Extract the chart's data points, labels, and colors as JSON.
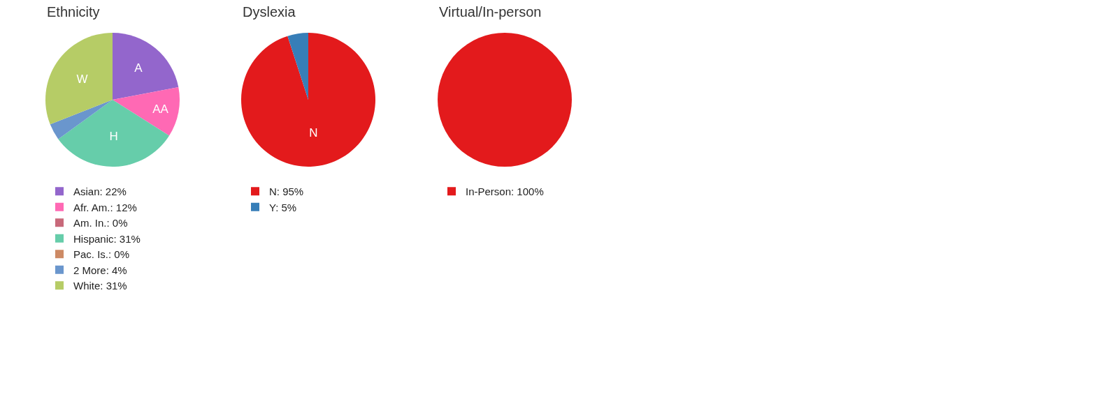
{
  "chart_data": [
    {
      "type": "pie",
      "title": "Ethnicity",
      "categories": [
        "Asian: 22%",
        "Afr. Am.: 12%",
        "Am. In.: 0%",
        "Hispanic: 31%",
        "Pac. Is.: 0%",
        "2 More: 4%",
        "White: 31%"
      ],
      "values": [
        22,
        12,
        0,
        31,
        0,
        4,
        31
      ],
      "colors": [
        "#9366cc",
        "#ff69b4",
        "#c8697a",
        "#66cdaa",
        "#cd8a65",
        "#6a96cd",
        "#b6cc66"
      ],
      "value_labels": [
        "A",
        "AA",
        null,
        "H",
        null,
        null,
        "W"
      ],
      "legend": "bottom"
    },
    {
      "type": "pie",
      "title": "Dyslexia",
      "categories": [
        "N: 95%",
        "Y: 5%"
      ],
      "values": [
        95,
        5
      ],
      "colors": [
        "#e31a1c",
        "#377eb8"
      ],
      "value_labels": [
        "N",
        null
      ],
      "legend": "bottom"
    },
    {
      "type": "pie",
      "title": "Virtual/In-person",
      "categories": [
        "In-Person: 100%"
      ],
      "values": [
        100
      ],
      "colors": [
        "#e31a1c"
      ],
      "value_labels": [
        null
      ],
      "legend": "bottom"
    }
  ]
}
